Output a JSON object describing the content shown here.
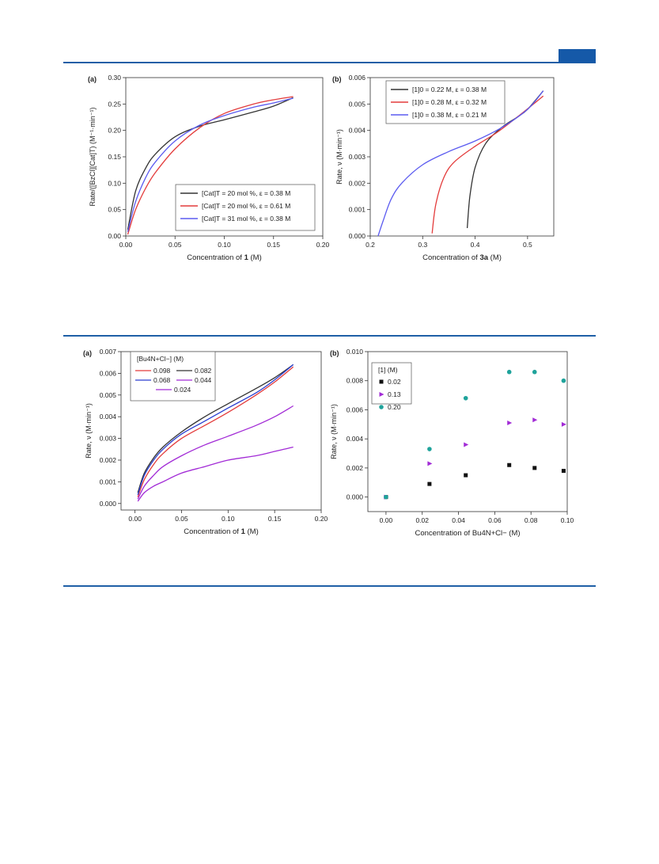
{
  "colors": {
    "accent": "#1f5fa6",
    "tab": "#1559a8"
  },
  "chart_data": [
    {
      "id": "top-a",
      "type": "line",
      "panel_label": "(a)",
      "ylabel": "Rate/([BzCl][Cat]T) (M⁻¹·min⁻¹)",
      "xlabel_parts": [
        "Concentration of ",
        "1",
        " (M)"
      ],
      "xlim": [
        0,
        0.2
      ],
      "ylim": [
        0,
        0.3
      ],
      "xticks": [
        "0.00",
        "0.05",
        "0.10",
        "0.15",
        "0.20"
      ],
      "yticks": [
        "0.00",
        "0.05",
        "0.10",
        "0.15",
        "0.20",
        "0.25",
        "0.30"
      ],
      "legend_position": "bottom-right",
      "series": [
        {
          "name": "[Cat]T = 20 mol %, ε = 0.38 M",
          "color": "#333333",
          "x": [
            0.002,
            0.01,
            0.02,
            0.03,
            0.05,
            0.075,
            0.1,
            0.13,
            0.15,
            0.17
          ],
          "y": [
            0.012,
            0.085,
            0.128,
            0.155,
            0.188,
            0.208,
            0.22,
            0.235,
            0.246,
            0.262
          ]
        },
        {
          "name": "[Cat]T = 20 mol %, ε = 0.61 M",
          "color": "#e33b3b",
          "x": [
            0.002,
            0.01,
            0.02,
            0.03,
            0.05,
            0.075,
            0.1,
            0.13,
            0.15,
            0.17
          ],
          "y": [
            0.003,
            0.05,
            0.09,
            0.12,
            0.165,
            0.205,
            0.232,
            0.25,
            0.258,
            0.264
          ]
        },
        {
          "name": "[Cat]T = 31 mol %, ε = 0.38 M",
          "color": "#5b5bf0",
          "x": [
            0.002,
            0.01,
            0.02,
            0.03,
            0.05,
            0.075,
            0.1,
            0.13,
            0.15,
            0.17
          ],
          "y": [
            0.008,
            0.065,
            0.11,
            0.14,
            0.18,
            0.21,
            0.228,
            0.244,
            0.252,
            0.261
          ]
        }
      ]
    },
    {
      "id": "top-b",
      "type": "line",
      "panel_label": "(b)",
      "ylabel": "Rate, ν (M·min⁻¹)",
      "xlabel_parts": [
        "Concentration of ",
        "3a",
        " (M)"
      ],
      "xlim": [
        0.2,
        0.55
      ],
      "ylim": [
        0,
        0.006
      ],
      "xticks": [
        "0.2",
        "0.3",
        "0.4",
        "0.5"
      ],
      "yticks": [
        "0.000",
        "0.001",
        "0.002",
        "0.003",
        "0.004",
        "0.005",
        "0.006"
      ],
      "legend_position": "top-left",
      "series": [
        {
          "name": "[1]0 = 0.22 M, ε = 0.38 M",
          "color": "#333333",
          "x": [
            0.385,
            0.39,
            0.4,
            0.42,
            0.45,
            0.48,
            0.5,
            0.53
          ],
          "y": [
            0.0003,
            0.0015,
            0.0026,
            0.0035,
            0.0041,
            0.0045,
            0.0048,
            0.0055
          ]
        },
        {
          "name": "[1]0 = 0.28 M, ε = 0.32 M",
          "color": "#e33b3b",
          "x": [
            0.318,
            0.325,
            0.34,
            0.36,
            0.4,
            0.44,
            0.48,
            0.53
          ],
          "y": [
            0.0001,
            0.0012,
            0.0022,
            0.0028,
            0.0034,
            0.0039,
            0.0045,
            0.0053
          ]
        },
        {
          "name": "[1]0 = 0.38 M, ε = 0.21 M",
          "color": "#5b5bf0",
          "x": [
            0.215,
            0.225,
            0.24,
            0.26,
            0.3,
            0.35,
            0.4,
            0.45,
            0.5,
            0.53
          ],
          "y": [
            0.0,
            0.0006,
            0.0014,
            0.002,
            0.0027,
            0.0032,
            0.0036,
            0.0041,
            0.0048,
            0.0055
          ]
        }
      ]
    },
    {
      "id": "bottom-a",
      "type": "line",
      "panel_label": "(a)",
      "ylabel": "Rate, ν (M·min⁻¹)",
      "xlabel_parts": [
        "Concentration of ",
        "1",
        " (M)"
      ],
      "xlim": [
        -0.015,
        0.2
      ],
      "ylim": [
        -0.0003,
        0.007
      ],
      "xticks": [
        "0.00",
        "0.05",
        "0.10",
        "0.15",
        "0.20"
      ],
      "yticks": [
        "0.000",
        "0.001",
        "0.002",
        "0.003",
        "0.004",
        "0.005",
        "0.006",
        "0.007"
      ],
      "legend_title": "[Bu4N+Cl−] (M)",
      "legend_position": "top-left",
      "series": [
        {
          "name": "0.098",
          "color": "#e33b3b",
          "x": [
            0.003,
            0.01,
            0.02,
            0.03,
            0.05,
            0.075,
            0.1,
            0.13,
            0.15,
            0.17
          ],
          "y": [
            0.0003,
            0.0011,
            0.0018,
            0.0023,
            0.003,
            0.0036,
            0.0042,
            0.005,
            0.0056,
            0.0063
          ]
        },
        {
          "name": "0.082",
          "color": "#333333",
          "x": [
            0.003,
            0.01,
            0.02,
            0.03,
            0.05,
            0.075,
            0.1,
            0.13,
            0.15,
            0.17
          ],
          "y": [
            0.0005,
            0.0014,
            0.0021,
            0.0026,
            0.0033,
            0.004,
            0.0046,
            0.0053,
            0.0058,
            0.0064
          ]
        },
        {
          "name": "0.068",
          "color": "#2a3fd1",
          "x": [
            0.003,
            0.01,
            0.02,
            0.03,
            0.05,
            0.075,
            0.1,
            0.13,
            0.15,
            0.17
          ],
          "y": [
            0.0004,
            0.0013,
            0.002,
            0.0025,
            0.0032,
            0.0038,
            0.0044,
            0.0051,
            0.0057,
            0.0064
          ]
        },
        {
          "name": "0.044",
          "color": "#a22bd6",
          "x": [
            0.003,
            0.01,
            0.02,
            0.03,
            0.05,
            0.075,
            0.1,
            0.13,
            0.15,
            0.17
          ],
          "y": [
            0.0002,
            0.0008,
            0.0013,
            0.0017,
            0.0022,
            0.0027,
            0.0031,
            0.0036,
            0.004,
            0.0045
          ]
        },
        {
          "name": "0.024",
          "color": "#a22bd6",
          "x": [
            0.003,
            0.01,
            0.02,
            0.03,
            0.05,
            0.075,
            0.1,
            0.13,
            0.15,
            0.17
          ],
          "y": [
            0.0001,
            0.0005,
            0.0008,
            0.001,
            0.0014,
            0.0017,
            0.002,
            0.0022,
            0.0024,
            0.0026
          ]
        }
      ]
    },
    {
      "id": "bottom-b",
      "type": "scatter",
      "panel_label": "(b)",
      "ylabel": "Rate, ν (M·min⁻¹)",
      "xlabel": "Concentration of Bu4N+Cl− (M)",
      "xlim": [
        -0.01,
        0.1
      ],
      "ylim": [
        -0.001,
        0.01
      ],
      "xticks": [
        "0.00",
        "0.02",
        "0.04",
        "0.06",
        "0.08",
        "0.10"
      ],
      "yticks": [
        "0.000",
        "0.002",
        "0.004",
        "0.006",
        "0.008",
        "0.010"
      ],
      "legend_title": "[1] (M)",
      "legend_position": "top-left",
      "series": [
        {
          "name": "0.02",
          "color": "#111111",
          "marker": "square",
          "x": [
            0.0,
            0.024,
            0.044,
            0.068,
            0.082,
            0.098
          ],
          "y": [
            0.0,
            0.0009,
            0.0015,
            0.0022,
            0.002,
            0.0018
          ]
        },
        {
          "name": "0.13",
          "color": "#a22bd6",
          "marker": "triangle",
          "x": [
            0.0,
            0.024,
            0.044,
            0.068,
            0.082,
            0.098
          ],
          "y": [
            0.0,
            0.0023,
            0.0036,
            0.0051,
            0.0053,
            0.005
          ]
        },
        {
          "name": "0.20",
          "color": "#1fa39b",
          "marker": "circle",
          "x": [
            0.0,
            0.024,
            0.044,
            0.068,
            0.082,
            0.098
          ],
          "y": [
            0.0,
            0.0033,
            0.0068,
            0.0086,
            0.0086,
            0.008
          ]
        }
      ]
    }
  ]
}
